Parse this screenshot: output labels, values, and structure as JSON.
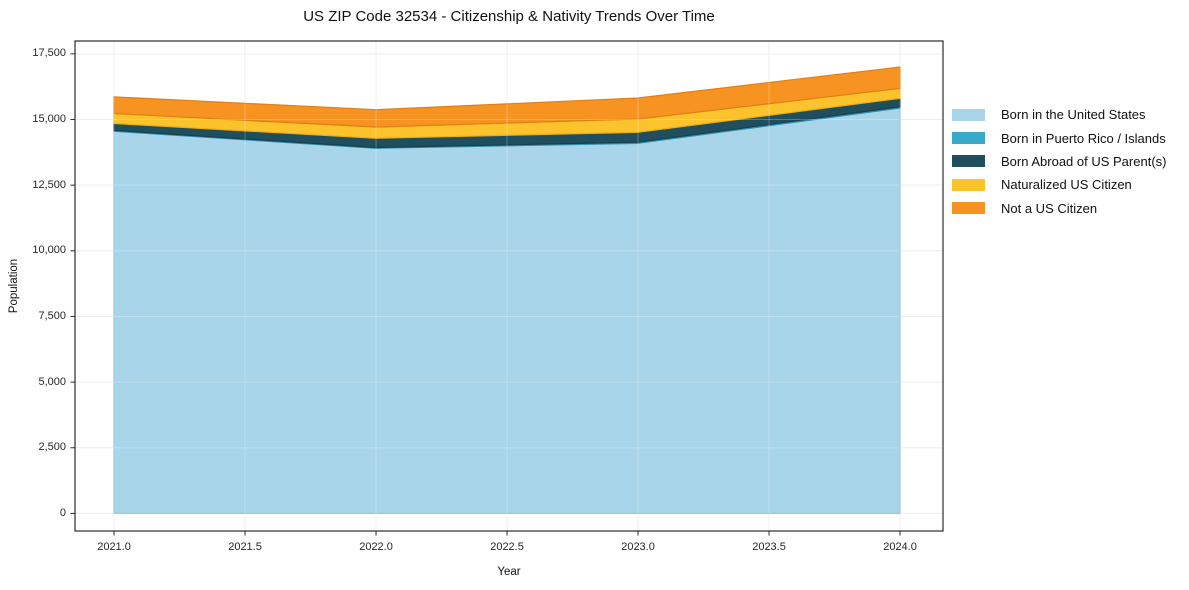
{
  "title": "US ZIP Code 32534 - Citizenship & Nativity Trends Over Time",
  "chart_data": {
    "type": "area",
    "stacked": true,
    "title": "US ZIP Code 32534 - Citizenship & Nativity Trends Over Time",
    "xlabel": "Year",
    "ylabel": "Population",
    "x": [
      2021,
      2022,
      2023,
      2024
    ],
    "series": [
      {
        "name": "Born in the United States",
        "color": "#a8d5ea",
        "edge": "#7fbeda",
        "values": [
          14550,
          13905,
          14095,
          15440
        ]
      },
      {
        "name": "Born in Puerto Rico / Islands",
        "color": "#3aa8c9",
        "edge": "#2f91ad",
        "values": [
          35,
          30,
          40,
          45
        ]
      },
      {
        "name": "Born Abroad of US Parent(s)",
        "color": "#1f4e5f",
        "edge": "#16404e",
        "values": [
          265,
          350,
          380,
          320
        ]
      },
      {
        "name": "Naturalized US Citizen",
        "color": "#fcc32d",
        "edge": "#e9ad17",
        "values": [
          380,
          430,
          505,
          380
        ]
      },
      {
        "name": "Not a US Citizen",
        "color": "#f79421",
        "edge": "#e07f15",
        "values": [
          630,
          660,
          800,
          815
        ]
      }
    ],
    "totals": [
      15860,
      15375,
      15820,
      17000
    ],
    "xticks": {
      "values": [
        2021.0,
        2021.5,
        2022.0,
        2022.5,
        2023.0,
        2023.5,
        2024.0
      ],
      "labels": [
        "2021.0",
        "2021.5",
        "2022.0",
        "2022.5",
        "2023.0",
        "2023.5",
        "2024.0"
      ]
    },
    "yticks": {
      "values": [
        0,
        2500,
        5000,
        7500,
        10000,
        12500,
        15000,
        17500
      ],
      "labels": [
        "0",
        "2,500",
        "5,000",
        "7,500",
        "10,000",
        "12,500",
        "15,000",
        "17,500"
      ]
    },
    "xlim": [
      2020.851,
      2024.164
    ],
    "ylim": [
      -670,
      17990
    ],
    "grid": true,
    "grid_color": "#e9e9e9",
    "spine_color": "#2b2b2b",
    "legend_position": "right-outside"
  }
}
